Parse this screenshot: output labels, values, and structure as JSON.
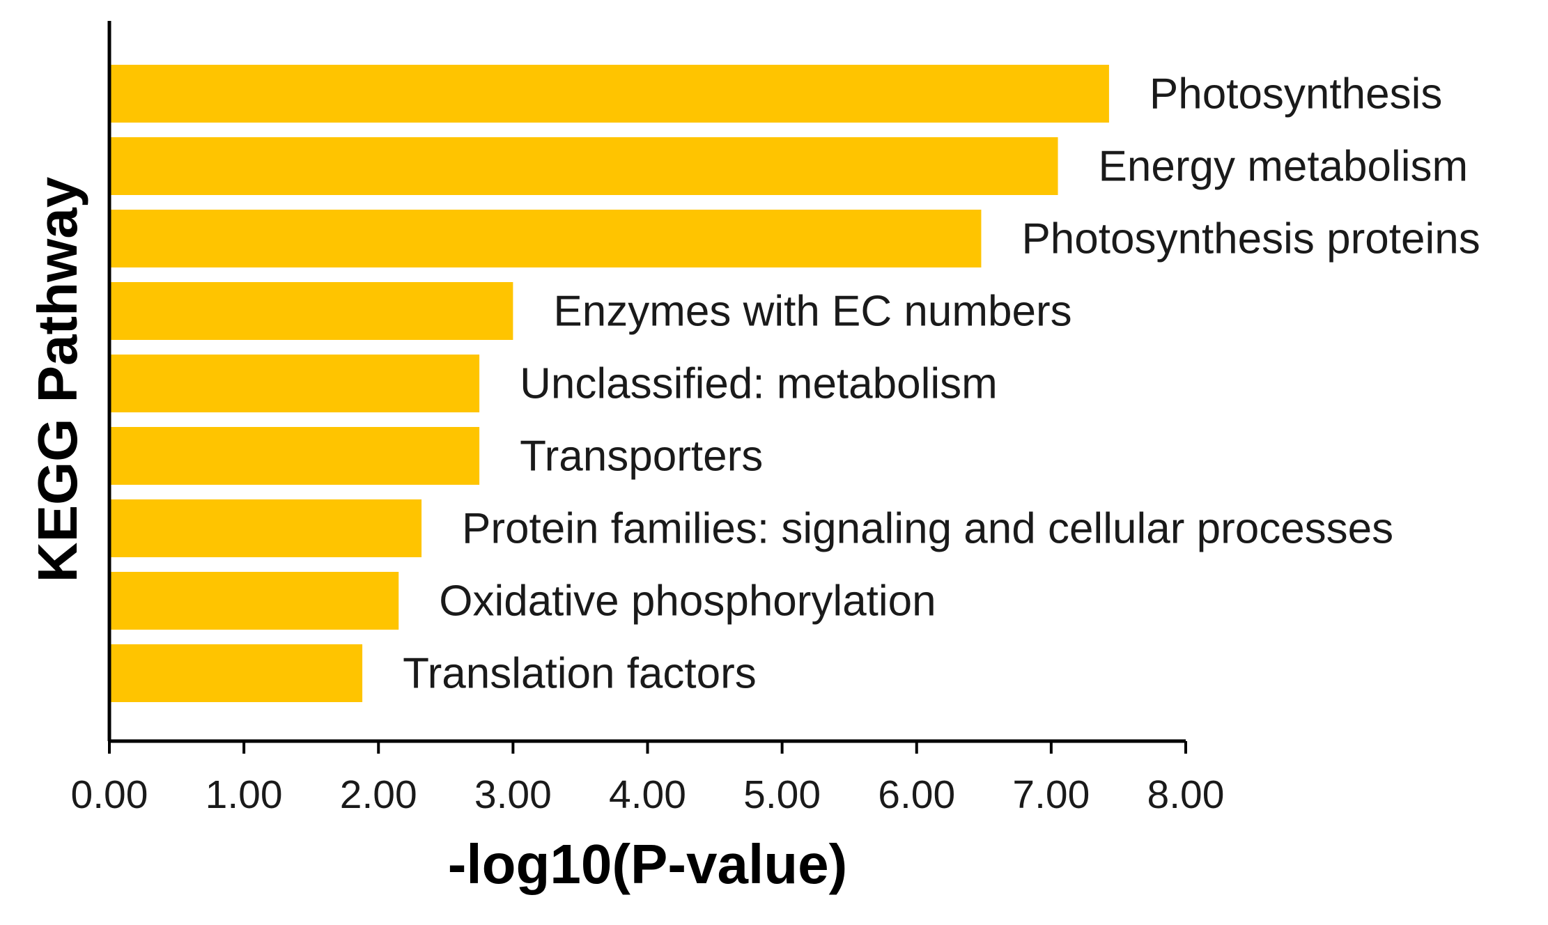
{
  "chart_data": {
    "type": "bar",
    "orientation": "horizontal",
    "title": "",
    "xlabel": "-log10(P-value)",
    "ylabel": "KEGG Pathway",
    "xlim": [
      0,
      8
    ],
    "x_ticks": [
      "0.00",
      "1.00",
      "2.00",
      "3.00",
      "4.00",
      "5.00",
      "6.00",
      "7.00",
      "8.00"
    ],
    "categories": [
      "Photosynthesis",
      "Energy metabolism",
      "Photosynthesis proteins",
      "Enzymes with EC numbers",
      "Unclassified: metabolism",
      "Transporters",
      "Protein families: signaling and cellular processes",
      "Oxidative phosphorylation",
      "Translation factors"
    ],
    "values": [
      7.43,
      7.05,
      6.48,
      3.0,
      2.75,
      2.75,
      2.32,
      2.15,
      1.88
    ],
    "bar_color": "#FFC400",
    "grid": false,
    "legend": "none"
  }
}
